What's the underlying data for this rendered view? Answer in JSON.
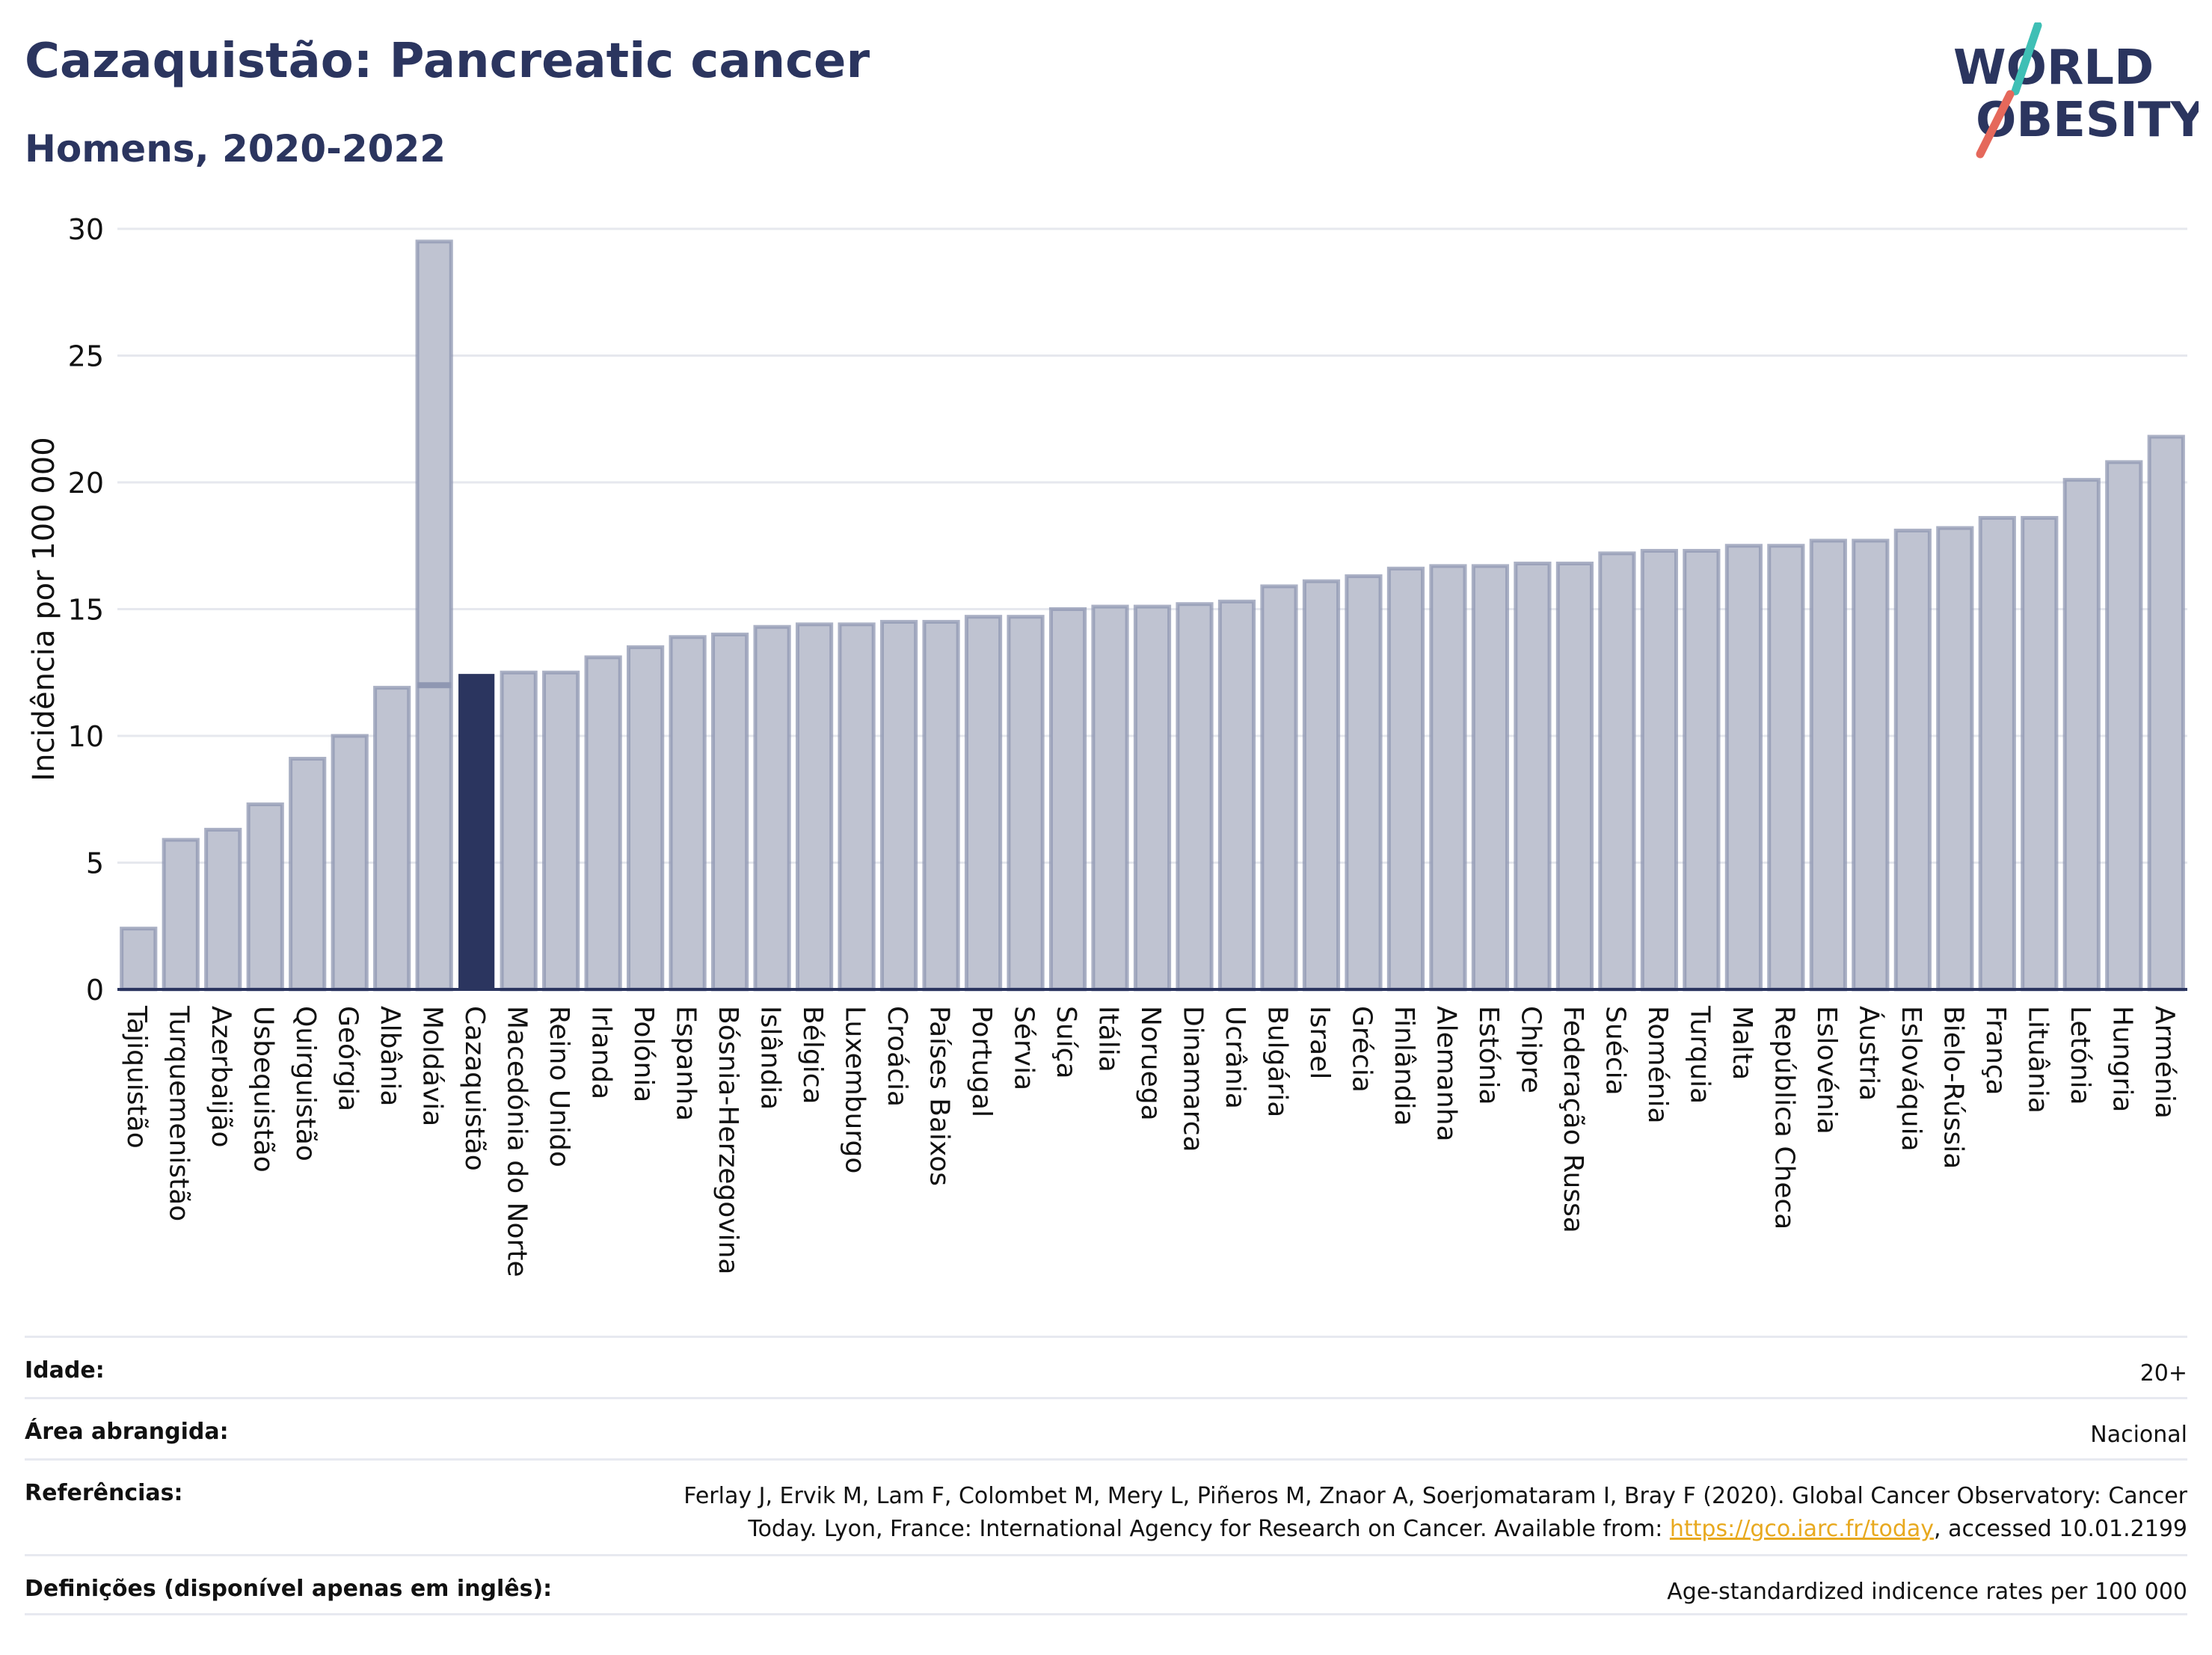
{
  "header": {
    "title": "Cazaquistão: Pancreatic cancer",
    "subtitle": "Homens, 2020-2022"
  },
  "logo": {
    "line1": "WORLD",
    "line2": "OBESITY",
    "colors": {
      "text": "#2b355f",
      "slash_top": "#3fbfb5",
      "slash_bottom": "#e5685b"
    }
  },
  "colors": {
    "bar_fill": "#bfc3d1",
    "bar_stroke": "#8f97b2",
    "highlight": "#2b355f",
    "grid": "#e6e8ee",
    "axis": "#2b355f",
    "title": "#2b355f"
  },
  "chart_data": {
    "type": "bar",
    "ylabel": "Incidência por 100 000",
    "xlabel": "",
    "ylim": [
      0,
      30
    ],
    "yticks": [
      0,
      5,
      10,
      15,
      20,
      25,
      30
    ],
    "grid": true,
    "highlight_category": "Cazaquistão",
    "categories": [
      "Tajiquistão",
      "Turquemenistão",
      "Azerbaijão",
      "Usbequistão",
      "Quirguistão",
      "Geórgia",
      "Albânia",
      "Moldávia",
      "Cazaquistão",
      "Macedónia do Norte",
      "Reino Unido",
      "Irlanda",
      "Polónia",
      "Espanha",
      "Bósnia-Herzegovina",
      "Islândia",
      "Bélgica",
      "Luxemburgo",
      "Croácia",
      "Países Baixos",
      "Portugal",
      "Sérvia",
      "Suíça",
      "Itália",
      "Noruega",
      "Dinamarca",
      "Ucrânia",
      "Bulgária",
      "Israel",
      "Grécia",
      "Finlândia",
      "Alemanha",
      "Estónia",
      "Chipre",
      "Federação Russa",
      "Suécia",
      "Roménia",
      "Turquia",
      "Malta",
      "República Checa",
      "Eslovénia",
      "Áustria",
      "Eslováquia",
      "Bielo-Rússia",
      "França",
      "Lituânia",
      "Letónia",
      "Hungria",
      "Arménia"
    ],
    "values": [
      2.4,
      5.9,
      6.3,
      7.3,
      9.1,
      10.0,
      11.9,
      29.5,
      12.4,
      12.5,
      12.5,
      13.1,
      13.5,
      13.9,
      14.0,
      14.3,
      14.4,
      14.4,
      14.5,
      14.5,
      14.7,
      14.7,
      15.0,
      15.1,
      15.1,
      15.2,
      15.3,
      15.9,
      16.1,
      16.3,
      16.6,
      16.7,
      16.7,
      16.8,
      16.8,
      17.2,
      17.3,
      17.3,
      17.5,
      17.5,
      17.7,
      17.7,
      18.1,
      18.2,
      18.6,
      18.6,
      20.1,
      20.8,
      21.8
    ],
    "secondary_markers": [
      {
        "category": "Moldávia",
        "value": 12.0
      }
    ]
  },
  "footer": {
    "age_label": "Idade:",
    "age_value": "20+",
    "area_label": "Área abrangida:",
    "area_value": "Nacional",
    "ref_label": "Referências:",
    "ref_text_1": "Ferlay J, Ervik M, Lam F, Colombet M, Mery L, Piñeros M, Znaor A, Soerjomataram I, Bray F (2020). Global Cancer Observatory: Cancer Today. Lyon, France: International Agency for Research on Cancer. Available from: ",
    "ref_link": "https://gco.iarc.fr/today",
    "ref_text_2": ", accessed 10.01.2199",
    "def_label": "Definições (disponível apenas em inglês):",
    "def_value": "Age-standardized indicence rates per 100 000"
  }
}
